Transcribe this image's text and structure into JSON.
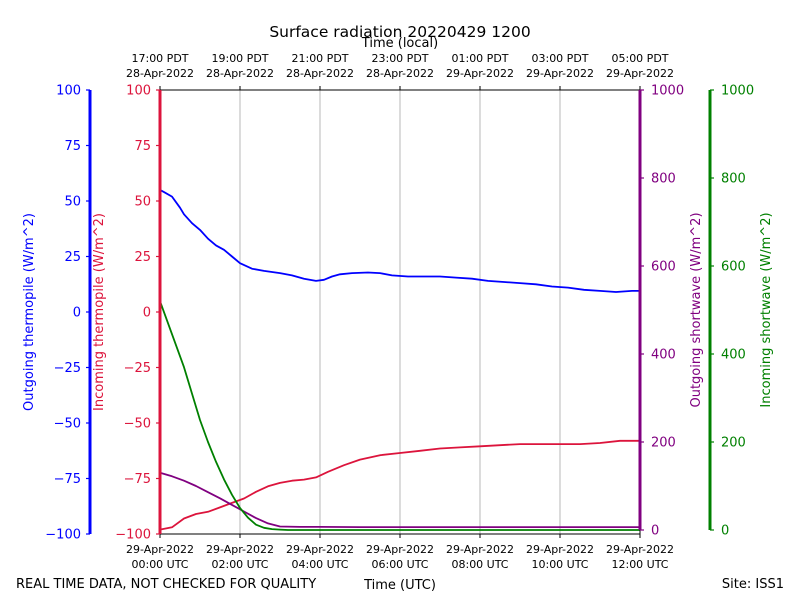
{
  "chart_data": {
    "type": "line",
    "title": "Surface radiation 20220429 1200",
    "top_axis_label": "Time (local)",
    "xlabel": "Time (UTC)",
    "footer_left": "REAL TIME DATA, NOT CHECKED FOR QUALITY",
    "footer_right": "Site: ISS1",
    "x_hours_range": [
      0,
      12
    ],
    "grid": "vertical",
    "bottom_ticks": [
      {
        "h": 0,
        "l1": "29-Apr-2022",
        "l2": "00:00 UTC"
      },
      {
        "h": 2,
        "l1": "29-Apr-2022",
        "l2": "02:00 UTC"
      },
      {
        "h": 4,
        "l1": "29-Apr-2022",
        "l2": "04:00 UTC"
      },
      {
        "h": 6,
        "l1": "29-Apr-2022",
        "l2": "06:00 UTC"
      },
      {
        "h": 8,
        "l1": "29-Apr-2022",
        "l2": "08:00 UTC"
      },
      {
        "h": 10,
        "l1": "29-Apr-2022",
        "l2": "10:00 UTC"
      },
      {
        "h": 12,
        "l1": "29-Apr-2022",
        "l2": "12:00 UTC"
      }
    ],
    "top_ticks": [
      {
        "h": 0,
        "l1": "17:00 PDT",
        "l2": "28-Apr-2022"
      },
      {
        "h": 2,
        "l1": "19:00 PDT",
        "l2": "28-Apr-2022"
      },
      {
        "h": 4,
        "l1": "21:00 PDT",
        "l2": "28-Apr-2022"
      },
      {
        "h": 6,
        "l1": "23:00 PDT",
        "l2": "28-Apr-2022"
      },
      {
        "h": 8,
        "l1": "01:00 PDT",
        "l2": "29-Apr-2022"
      },
      {
        "h": 10,
        "l1": "03:00 PDT",
        "l2": "29-Apr-2022"
      },
      {
        "h": 12,
        "l1": "05:00 PDT",
        "l2": "29-Apr-2022"
      }
    ],
    "axes": [
      {
        "id": "outgoing_thermopile",
        "label": "Outgoing thermopile (W/m^2)",
        "color": "#0000ff",
        "range": [
          -100,
          100
        ],
        "ticks": [
          100,
          75,
          50,
          25,
          0,
          -25,
          -50,
          -75,
          -100
        ]
      },
      {
        "id": "incoming_thermopile",
        "label": "Incoming thermopile (W/m^2)",
        "color": "#dc143c",
        "range": [
          -100,
          100
        ],
        "ticks": [
          100,
          75,
          50,
          25,
          0,
          -25,
          -50,
          -75,
          -100
        ]
      },
      {
        "id": "outgoing_shortwave",
        "label": "Outgoing shortwave (W/m^2)",
        "color": "#800080",
        "range": [
          0,
          1000
        ],
        "ticks": [
          1000,
          800,
          600,
          400,
          200,
          0
        ]
      },
      {
        "id": "incoming_shortwave",
        "label": "Incoming shortwave (W/m^2)",
        "color": "#008000",
        "range": [
          0,
          1000
        ],
        "ticks": [
          1000,
          800,
          600,
          400,
          200,
          0
        ]
      }
    ],
    "series": [
      {
        "axis": "outgoing_thermopile",
        "color": "#0000ff",
        "x": [
          0,
          0.1,
          0.3,
          0.5,
          0.6,
          0.8,
          1.0,
          1.2,
          1.4,
          1.6,
          1.8,
          2.0,
          2.3,
          2.6,
          3.0,
          3.3,
          3.6,
          3.9,
          4.1,
          4.3,
          4.5,
          4.8,
          5.2,
          5.5,
          5.8,
          6.2,
          6.6,
          7.0,
          7.4,
          7.8,
          8.2,
          8.6,
          9.0,
          9.4,
          9.8,
          10.2,
          10.6,
          11.0,
          11.4,
          11.8,
          12.0
        ],
        "y": [
          55,
          54,
          52,
          47,
          44,
          40,
          37,
          33,
          30,
          28,
          25,
          22,
          19.5,
          18.5,
          17.5,
          16.5,
          15,
          14,
          14.5,
          16,
          17,
          17.5,
          17.8,
          17.5,
          16.5,
          16,
          16,
          16,
          15.5,
          15,
          14,
          13.5,
          13,
          12.5,
          11.5,
          11,
          10,
          9.5,
          9,
          9.5,
          9.5
        ]
      },
      {
        "axis": "incoming_thermopile",
        "color": "#dc143c",
        "x": [
          0,
          0.3,
          0.6,
          0.9,
          1.2,
          1.5,
          1.8,
          2.1,
          2.4,
          2.7,
          3.0,
          3.3,
          3.6,
          3.9,
          4.2,
          4.6,
          5.0,
          5.5,
          6.0,
          6.5,
          7.0,
          7.5,
          8.0,
          8.5,
          9.0,
          9.5,
          10.0,
          10.5,
          11.0,
          11.5,
          12.0
        ],
        "y": [
          -98,
          -97,
          -93,
          -91,
          -90,
          -88,
          -86,
          -84,
          -81,
          -78.5,
          -77,
          -76,
          -75.5,
          -74.5,
          -72,
          -69,
          -66.5,
          -64.5,
          -63.5,
          -62.5,
          -61.5,
          -61,
          -60.5,
          -60,
          -59.5,
          -59.5,
          -59.5,
          -59.5,
          -59,
          -58,
          -58
        ]
      },
      {
        "axis": "outgoing_shortwave",
        "color": "#800080",
        "x": [
          0,
          0.3,
          0.6,
          0.9,
          1.2,
          1.5,
          1.8,
          2.1,
          2.4,
          2.7,
          3.0,
          3.5,
          4.0,
          5.0,
          6.0,
          7.0,
          8.0,
          9.0,
          10.0,
          11.0,
          12.0
        ],
        "y": [
          130,
          122,
          112,
          100,
          86,
          72,
          57,
          42,
          27,
          15,
          8,
          7,
          7,
          6.5,
          6.5,
          6.5,
          6.5,
          6.5,
          6.5,
          6.5,
          6.5
        ]
      },
      {
        "axis": "incoming_shortwave",
        "color": "#008000",
        "x": [
          0,
          0.2,
          0.4,
          0.6,
          0.8,
          1.0,
          1.2,
          1.4,
          1.6,
          1.8,
          2.0,
          2.2,
          2.4,
          2.6,
          2.8,
          3.0,
          3.2,
          3.5,
          4.0,
          5.0,
          6.0,
          7.0,
          8.0,
          9.0,
          10.0,
          11.0,
          12.0
        ],
        "y": [
          520,
          470,
          420,
          370,
          310,
          250,
          200,
          155,
          115,
          80,
          50,
          28,
          12,
          5,
          2,
          1,
          0,
          0,
          0,
          0,
          0,
          0,
          0,
          0,
          0,
          0,
          0
        ]
      }
    ]
  }
}
